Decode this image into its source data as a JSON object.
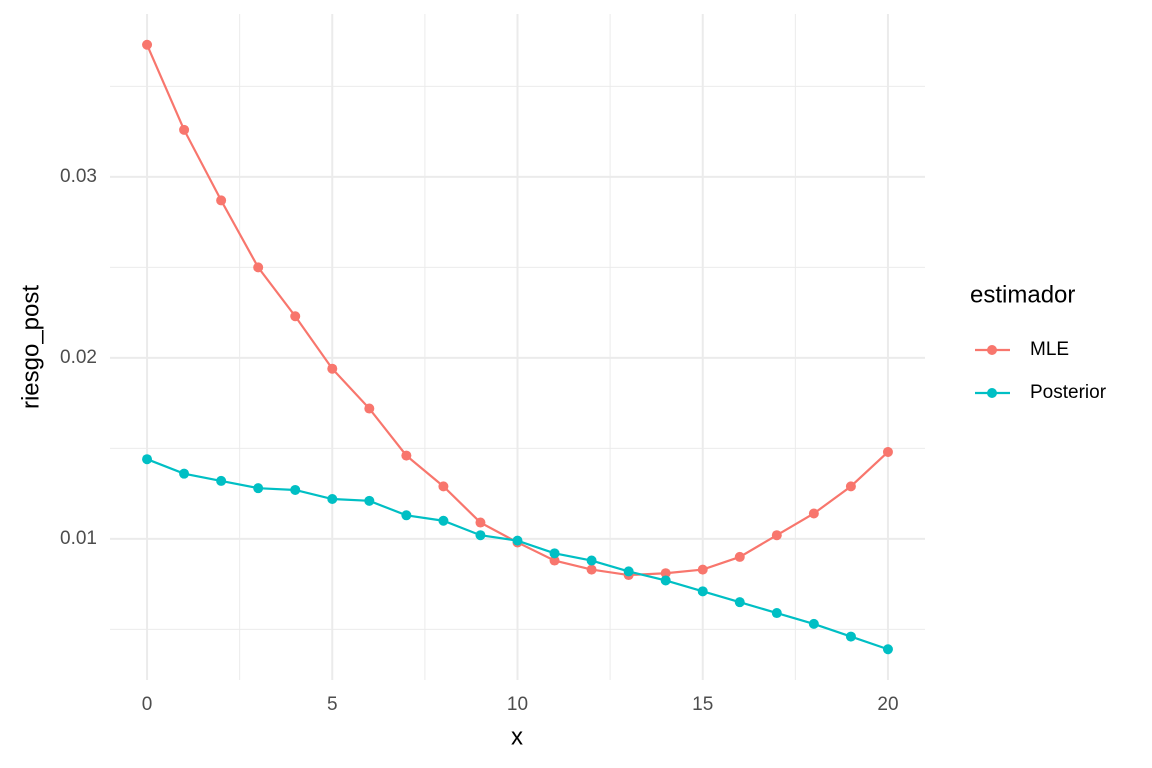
{
  "chart_data": {
    "type": "line",
    "x_label": "x",
    "y_label": "riesgo_post",
    "legend_title": "estimador",
    "x": [
      0,
      1,
      2,
      3,
      4,
      5,
      6,
      7,
      8,
      9,
      10,
      11,
      12,
      13,
      14,
      15,
      16,
      17,
      18,
      19,
      20
    ],
    "series": [
      {
        "name": "MLE",
        "color": "#F8766D",
        "values": [
          0.0373,
          0.0326,
          0.0287,
          0.025,
          0.0223,
          0.0194,
          0.0172,
          0.0146,
          0.0129,
          0.0109,
          0.0098,
          0.0088,
          0.0083,
          0.008,
          0.0081,
          0.0083,
          0.009,
          0.0102,
          0.0114,
          0.0129,
          0.0148
        ]
      },
      {
        "name": "Posterior",
        "color": "#00BFC4",
        "values": [
          0.0144,
          0.0136,
          0.0132,
          0.0128,
          0.0127,
          0.0122,
          0.0121,
          0.0113,
          0.011,
          0.0102,
          0.0099,
          0.0092,
          0.0088,
          0.0082,
          0.0077,
          0.0071,
          0.0065,
          0.0059,
          0.0053,
          0.0046,
          0.0039
        ]
      }
    ],
    "xlim": [
      -1,
      21
    ],
    "xticks": [
      0,
      5,
      10,
      15,
      20
    ],
    "ylim": [
      0.0022,
      0.039
    ],
    "yticks": [
      0.01,
      0.02,
      0.03
    ],
    "grid": true,
    "legend": "right"
  }
}
